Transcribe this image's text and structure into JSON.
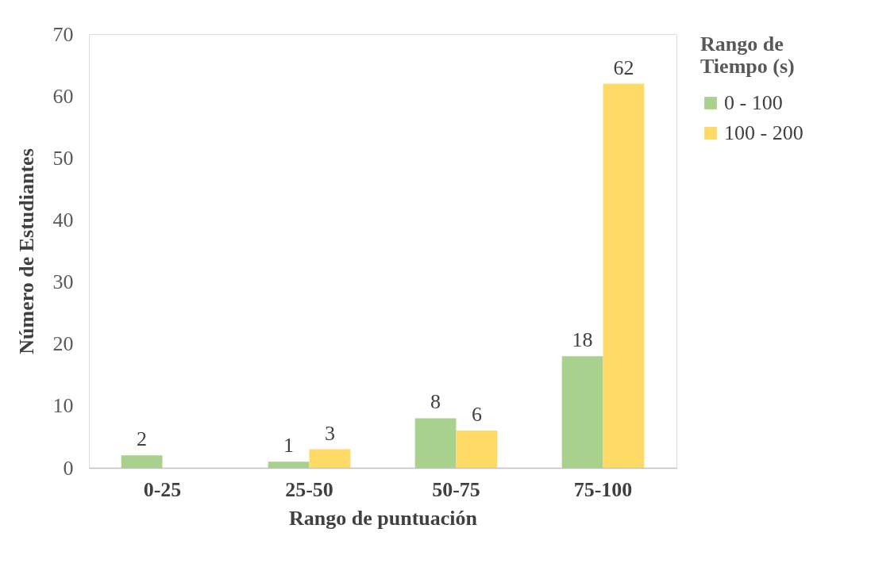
{
  "chart_data": {
    "type": "bar",
    "xlabel": "Rango de puntuación",
    "ylabel": "Número de Estudiantes",
    "legend_title": "Rango de Tiempo (s)",
    "categories": [
      "0-25",
      "25-50",
      "50-75",
      "75-100"
    ],
    "series": [
      {
        "name": "0 - 100",
        "color": "#a9d18e",
        "values": [
          2,
          1,
          8,
          18
        ],
        "value_labels": [
          "2",
          "1",
          "8",
          "18"
        ]
      },
      {
        "name": "100 - 200",
        "color": "#ffd966",
        "values": [
          null,
          3,
          6,
          62
        ],
        "value_labels": [
          null,
          "3",
          "6",
          "62"
        ]
      }
    ],
    "ylim": [
      0,
      70
    ],
    "yticks": [
      0,
      10,
      20,
      30,
      40,
      50,
      60,
      70
    ],
    "grid": false,
    "legend": "right"
  }
}
